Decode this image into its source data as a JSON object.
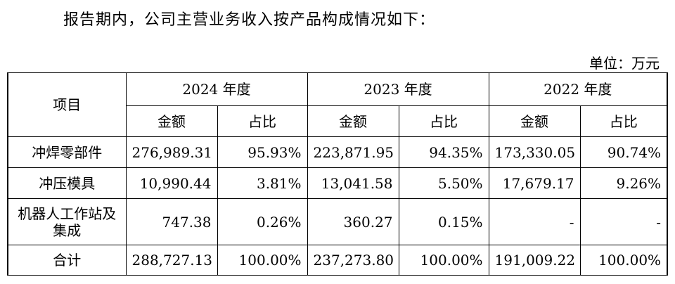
{
  "intro_text": "报告期内，公司主营业务收入按产品构成情况如下：",
  "unit_label": "单位：万元",
  "table": {
    "item_header": "项目",
    "years": [
      "2024 年度",
      "2023 年度",
      "2022 年度"
    ],
    "sub_headers": {
      "amount": "金额",
      "ratio": "占比"
    },
    "rows": [
      {
        "label": "冲焊零部件",
        "cells": [
          "276,989.31",
          "95.93%",
          "223,871.95",
          "94.35%",
          "173,330.05",
          "90.74%"
        ]
      },
      {
        "label": "冲压模具",
        "cells": [
          "10,990.44",
          "3.81%",
          "13,041.58",
          "5.50%",
          "17,679.17",
          "9.26%"
        ]
      },
      {
        "label": "机器人工作站及集成",
        "cells": [
          "747.38",
          "0.26%",
          "360.27",
          "0.15%",
          "-",
          "-"
        ]
      }
    ],
    "total": {
      "label": "合计",
      "cells": [
        "288,727.13",
        "100.00%",
        "237,273.80",
        "100.00%",
        "191,009.22",
        "100.00%"
      ]
    }
  }
}
